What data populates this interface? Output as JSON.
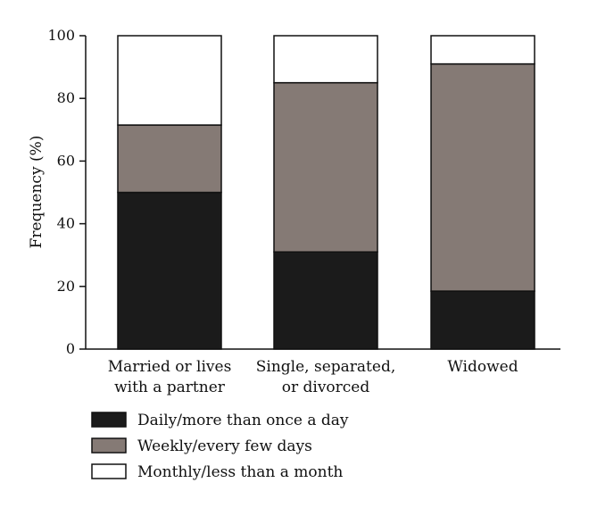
{
  "chart_data": {
    "type": "bar",
    "stacked": true,
    "categories": [
      [
        "Married or lives",
        "with a partner"
      ],
      [
        "Single, separated,",
        "or divorced"
      ],
      [
        "Widowed"
      ]
    ],
    "series": [
      {
        "name": "Daily/more than once a day",
        "color": "#1b1b1b",
        "values": [
          50,
          31,
          18.5
        ]
      },
      {
        "name": "Weekly/every few days",
        "color": "#857a75",
        "values": [
          21.5,
          54,
          72.5
        ]
      },
      {
        "name": "Monthly/less than a month",
        "color": "#ffffff",
        "values": [
          28.5,
          15,
          9
        ]
      }
    ],
    "ylabel": "Frequency (%)",
    "ylim": [
      0,
      100
    ],
    "yticks": [
      0,
      20,
      40,
      60,
      80,
      100
    ],
    "legend_position": "bottom-left",
    "grid": false
  }
}
